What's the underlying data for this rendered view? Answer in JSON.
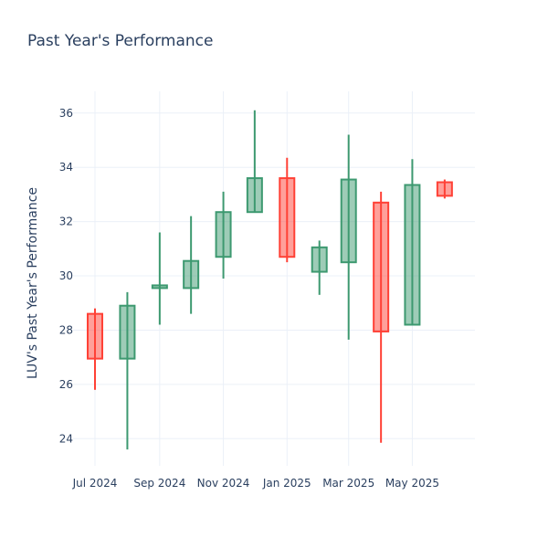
{
  "chart_data": {
    "type": "candlestick",
    "title": "Past Year's Performance",
    "xlabel": "",
    "ylabel": "LUV's Past Year's Performance",
    "ylim": [
      23,
      36.8
    ],
    "grid": true,
    "legend": "none",
    "x_ticks": [
      {
        "date": "2024-07-01",
        "label": "Jul 2024"
      },
      {
        "date": "2024-09-01",
        "label": "Sep 2024"
      },
      {
        "date": "2024-11-01",
        "label": "Nov 2024"
      },
      {
        "date": "2025-01-01",
        "label": "Jan 2025"
      },
      {
        "date": "2025-03-01",
        "label": "Mar 2025"
      },
      {
        "date": "2025-05-01",
        "label": "May 2025"
      }
    ],
    "y_ticks": [
      24,
      26,
      28,
      30,
      32,
      34,
      36
    ],
    "xlim": [
      "2024-06-10",
      "2025-06-30"
    ],
    "colors": {
      "increasing_line": "#3d9970",
      "increasing_fill": "rgba(61,153,112,0.5)",
      "decreasing_line": "#ff4136",
      "decreasing_fill": "rgba(255,65,54,0.5)"
    },
    "candles": [
      {
        "date": "2024-07-01",
        "open": 28.6,
        "high": 28.8,
        "low": 25.8,
        "close": 26.95
      },
      {
        "date": "2024-08-01",
        "open": 26.95,
        "high": 29.4,
        "low": 23.6,
        "close": 28.9
      },
      {
        "date": "2024-09-01",
        "open": 29.55,
        "high": 31.6,
        "low": 28.2,
        "close": 29.65
      },
      {
        "date": "2024-10-01",
        "open": 29.55,
        "high": 32.2,
        "low": 28.6,
        "close": 30.55
      },
      {
        "date": "2024-11-01",
        "open": 30.7,
        "high": 33.1,
        "low": 29.9,
        "close": 32.35
      },
      {
        "date": "2024-12-01",
        "open": 32.35,
        "high": 36.1,
        "low": 32.35,
        "close": 33.6
      },
      {
        "date": "2025-01-01",
        "open": 33.6,
        "high": 34.35,
        "low": 30.5,
        "close": 30.7
      },
      {
        "date": "2025-02-01",
        "open": 30.15,
        "high": 31.3,
        "low": 29.3,
        "close": 31.05
      },
      {
        "date": "2025-03-01",
        "open": 30.5,
        "high": 35.2,
        "low": 27.65,
        "close": 33.55
      },
      {
        "date": "2025-04-01",
        "open": 32.7,
        "high": 33.1,
        "low": 23.85,
        "close": 27.95
      },
      {
        "date": "2025-05-01",
        "open": 28.2,
        "high": 34.3,
        "low": 28.2,
        "close": 33.35
      },
      {
        "date": "2025-06-01",
        "open": 33.45,
        "high": 33.55,
        "low": 32.85,
        "close": 32.95
      }
    ]
  }
}
